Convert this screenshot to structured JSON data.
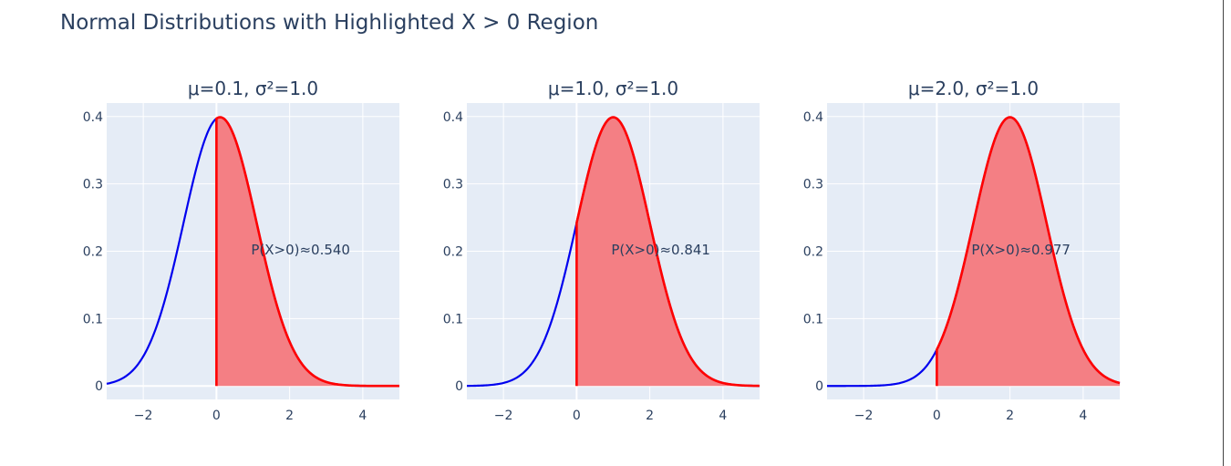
{
  "title": "Normal Distributions with Highlighted X > 0 Region",
  "chart_data": [
    {
      "type": "area",
      "title": "μ=0.1, σ²=1.0",
      "mu": 0.1,
      "variance": 1.0,
      "xlim": [
        -3,
        5
      ],
      "ylim": [
        -0.02,
        0.42
      ],
      "xticks": [
        -2,
        0,
        2,
        4
      ],
      "xtick_labels": [
        "−2",
        "0",
        "2",
        "4"
      ],
      "yticks": [
        0,
        0.1,
        0.2,
        0.3,
        0.4
      ],
      "ytick_labels": [
        "0",
        "0.1",
        "0.2",
        "0.3",
        "0.4"
      ],
      "threshold": 0,
      "annotation": "P(X>0)≈0.540",
      "annotation_anchor": [
        2.3,
        0.195
      ],
      "grid": true,
      "colors": {
        "curve": "#0000ee",
        "highlight": "#ff0000",
        "fill": "#f47f84"
      }
    },
    {
      "type": "area",
      "title": "μ=1.0, σ²=1.0",
      "mu": 1.0,
      "variance": 1.0,
      "xlim": [
        -3,
        5
      ],
      "ylim": [
        -0.02,
        0.42
      ],
      "xticks": [
        -2,
        0,
        2,
        4
      ],
      "xtick_labels": [
        "−2",
        "0",
        "2",
        "4"
      ],
      "yticks": [
        0,
        0.1,
        0.2,
        0.3,
        0.4
      ],
      "ytick_labels": [
        "0",
        "0.1",
        "0.2",
        "0.3",
        "0.4"
      ],
      "threshold": 0,
      "annotation": "P(X>0)≈0.841",
      "annotation_anchor": [
        2.3,
        0.195
      ],
      "grid": true,
      "colors": {
        "curve": "#0000ee",
        "highlight": "#ff0000",
        "fill": "#f47f84"
      }
    },
    {
      "type": "area",
      "title": "μ=2.0, σ²=1.0",
      "mu": 2.0,
      "variance": 1.0,
      "xlim": [
        -3,
        5
      ],
      "ylim": [
        -0.02,
        0.42
      ],
      "xticks": [
        -2,
        0,
        2,
        4
      ],
      "xtick_labels": [
        "−2",
        "0",
        "2",
        "4"
      ],
      "yticks": [
        0,
        0.1,
        0.2,
        0.3,
        0.4
      ],
      "ytick_labels": [
        "0",
        "0.1",
        "0.2",
        "0.3",
        "0.4"
      ],
      "threshold": 0,
      "annotation": "P(X>0)≈0.977",
      "annotation_anchor": [
        2.3,
        0.195
      ],
      "grid": true,
      "colors": {
        "curve": "#0000ee",
        "highlight": "#ff0000",
        "fill": "#f47f84"
      }
    }
  ]
}
